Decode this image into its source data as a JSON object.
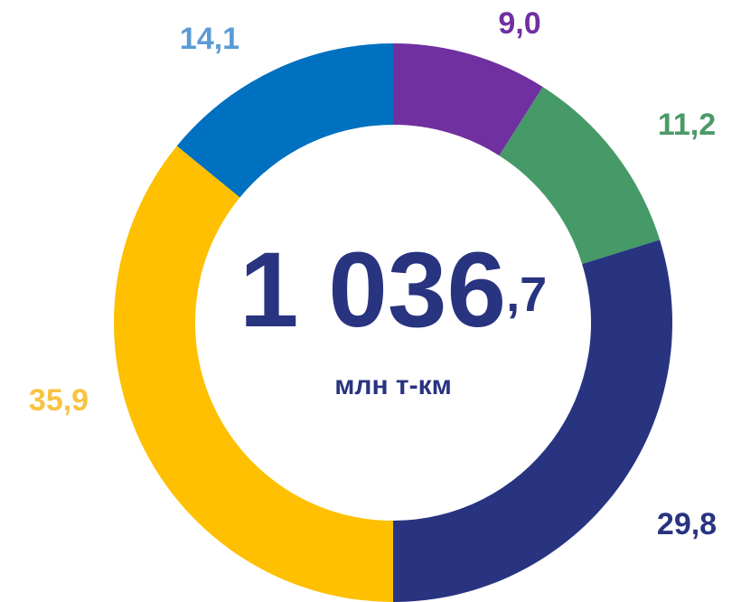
{
  "chart_data": {
    "type": "donut",
    "categories": [
      null,
      null,
      null,
      null,
      null
    ],
    "values": [
      9.0,
      11.2,
      29.8,
      35.9,
      14.1
    ],
    "value_labels": [
      "9,0",
      "11,2",
      "29,8",
      "35,9",
      "14,1"
    ],
    "colors": [
      "#7030a0",
      "#459a67",
      "#283480",
      "#fec000",
      "#0070c0"
    ],
    "label_colors": [
      "#7030a0",
      "#4a9a67",
      "#283480",
      "#f7c342",
      "#5b9bd5"
    ],
    "center_value": {
      "integer": "1 036",
      "fraction": ",7"
    },
    "center_unit": "млн т-км"
  }
}
